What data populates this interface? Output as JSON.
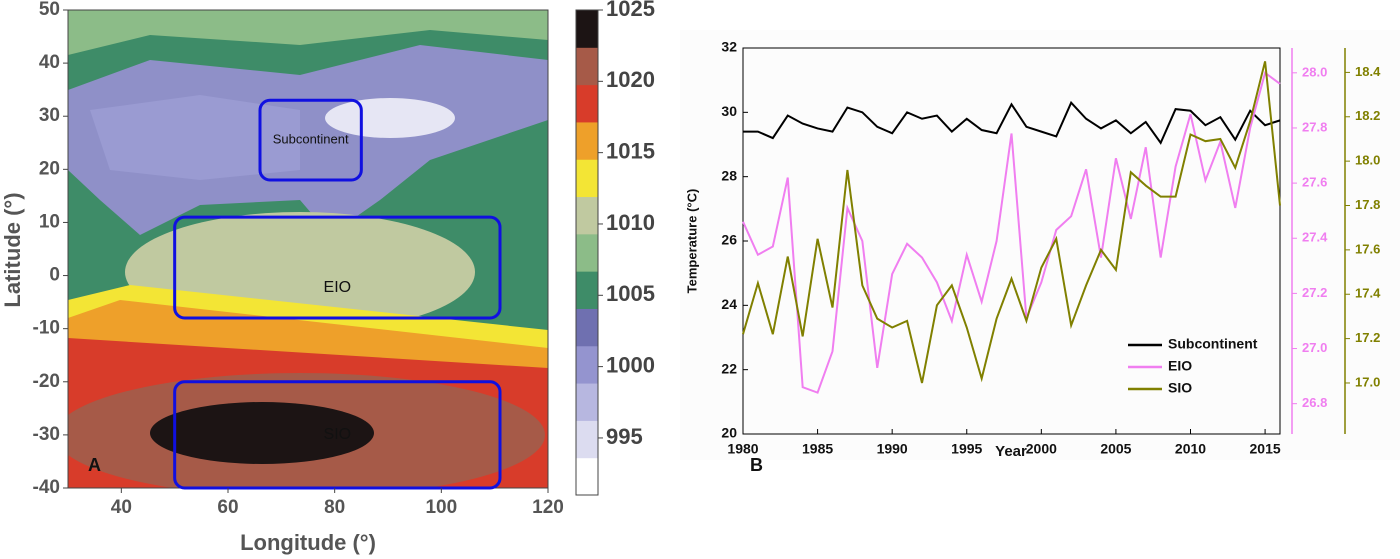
{
  "panel_a": {
    "label": "A",
    "xlabel": "Longitude (°)",
    "ylabel": "Latitude (°)",
    "xlim": [
      30,
      120
    ],
    "xticks": [
      40,
      60,
      80,
      100,
      120
    ],
    "ylim": [
      -40,
      50
    ],
    "yticks": [
      -40,
      -30,
      -20,
      -10,
      0,
      10,
      20,
      30,
      40,
      50
    ],
    "colorbar": {
      "lim": [
        991,
        1025
      ],
      "ticks": [
        995,
        1000,
        1005,
        1010,
        1015,
        1020,
        1025
      ],
      "colors": [
        "#ffffff",
        "#dcdcf0",
        "#b7b7e0",
        "#9494cf",
        "#6f70b0",
        "#3e8c68",
        "#8cbc88",
        "#c0c9a0",
        "#f3e535",
        "#eea02a",
        "#d83c2a",
        "#a65a48",
        "#1c1414"
      ]
    },
    "boxes": [
      {
        "label": "Subcontinent",
        "lon": [
          66,
          85
        ],
        "lat": [
          18,
          33
        ]
      },
      {
        "label": "EIO",
        "lon": [
          50,
          111
        ],
        "lat": [
          -8,
          11
        ]
      },
      {
        "label": "SIO",
        "lon": [
          50,
          111
        ],
        "lat": [
          -40,
          -20
        ]
      }
    ],
    "box_color": "#1010e0"
  },
  "chart_data": {
    "type": "line",
    "label": "B",
    "xlabel": "Year",
    "ylabel": "Temperature (°C)",
    "x": [
      1980,
      1981,
      1982,
      1983,
      1984,
      1985,
      1986,
      1987,
      1988,
      1989,
      1990,
      1991,
      1992,
      1993,
      1994,
      1995,
      1996,
      1997,
      1998,
      1999,
      2000,
      2001,
      2002,
      2003,
      2004,
      2005,
      2006,
      2007,
      2008,
      2009,
      2010,
      2011,
      2012,
      2013,
      2014,
      2015,
      2016
    ],
    "xlim": [
      1980,
      2016
    ],
    "xticks": [
      1980,
      1985,
      1990,
      1995,
      2000,
      2005,
      2010,
      2015
    ],
    "ylim": [
      20,
      32
    ],
    "yticks": [
      20,
      22,
      24,
      26,
      28,
      30,
      32
    ],
    "y2lim": [
      26.69,
      28.09
    ],
    "y2ticks": [
      26.8,
      {
        "value": 27.0,
        "label": "27.0"
      },
      27.2,
      27.4,
      27.6,
      27.8,
      {
        "value": 28.0,
        "label": "28.0"
      }
    ],
    "y2color": "#f07ef0",
    "y3lim": [
      16.77,
      18.51
    ],
    "y3ticks": [
      {
        "value": 17.0,
        "label": "17.0"
      },
      17.2,
      17.4,
      17.6,
      17.8,
      {
        "value": 18.0,
        "label": "18.0"
      },
      18.2,
      18.4
    ],
    "y3color": "#808000",
    "legend": "lower-right",
    "series": [
      {
        "name": "Subcontinent",
        "color": "#000000",
        "axis": "y",
        "values": [
          29.4,
          29.4,
          29.2,
          29.9,
          29.65,
          29.5,
          29.4,
          30.15,
          30.0,
          29.55,
          29.35,
          30.0,
          29.8,
          29.9,
          29.4,
          29.8,
          29.45,
          29.35,
          30.25,
          29.55,
          29.4,
          29.25,
          30.3,
          29.8,
          29.5,
          29.75,
          29.35,
          29.7,
          29.05,
          30.1,
          30.05,
          29.6,
          29.85,
          29.15,
          30.05,
          29.6,
          29.75
        ]
      },
      {
        "name": "EIO",
        "color": "#f07ef0",
        "axis": "y2",
        "values": [
          27.46,
          27.34,
          27.37,
          27.62,
          26.86,
          26.84,
          26.99,
          27.51,
          27.39,
          26.93,
          27.27,
          27.38,
          27.33,
          27.24,
          27.1,
          27.34,
          27.17,
          27.39,
          27.78,
          27.11,
          27.24,
          27.43,
          27.48,
          27.65,
          27.33,
          27.69,
          27.47,
          27.73,
          27.33,
          27.66,
          27.85,
          27.61,
          27.75,
          27.51,
          27.8,
          28.0,
          27.96
        ]
      },
      {
        "name": "SIO",
        "color": "#808000",
        "axis": "y3",
        "values": [
          17.22,
          17.45,
          17.22,
          17.57,
          17.21,
          17.65,
          17.34,
          17.96,
          17.44,
          17.29,
          17.25,
          17.28,
          17.0,
          17.35,
          17.44,
          17.25,
          17.02,
          17.29,
          17.47,
          17.28,
          17.52,
          17.65,
          17.26,
          17.44,
          17.6,
          17.51,
          17.95,
          17.89,
          17.84,
          17.84,
          18.12,
          18.09,
          18.1,
          17.97,
          18.18,
          18.45,
          17.8
        ]
      }
    ]
  }
}
